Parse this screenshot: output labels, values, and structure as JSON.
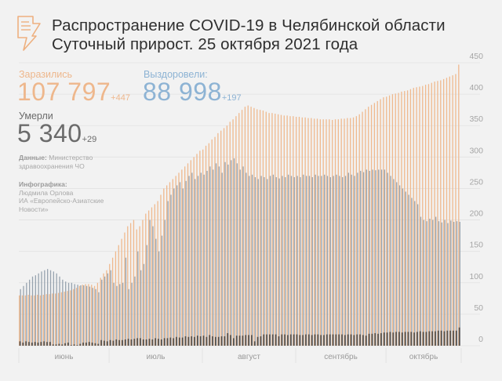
{
  "header": {
    "title_line1": "Распространение COVID-19 в Челябинской области",
    "title_line2": "Суточный прирост. 25 октября 2021 года",
    "icon": "news-lightning-icon"
  },
  "stats": {
    "infected": {
      "label": "Заразились",
      "value": "107 797",
      "increment": "+447"
    },
    "recovered": {
      "label": "Выздоровели:",
      "value": "88 998",
      "increment": "+197"
    },
    "died": {
      "label": "Умерли",
      "value": "5 340",
      "increment": "+29"
    }
  },
  "credits": {
    "data_label": "Данные:",
    "data_text1": "Министерство",
    "data_text2": "здравоохранения ЧО",
    "graphic_label": "Инфографика:",
    "graphic_text1": "Людмила Орлова",
    "graphic_text2": "ИА «Европейско-Азиатские",
    "graphic_text3": "Новости»"
  },
  "colors": {
    "infected": "#efb98e",
    "recovered": "#8d9aa7",
    "died": "#5b5550",
    "grid": "#e2e2e2"
  },
  "chart_data": {
    "type": "bar",
    "title": "Суточный прирост",
    "x_start": "2021-06-01",
    "x_end": "2021-10-25",
    "month_labels": [
      "июнь",
      "июль",
      "август",
      "сентябрь",
      "октябрь"
    ],
    "month_days": [
      30,
      31,
      31,
      30,
      25
    ],
    "ylim": [
      0,
      450
    ],
    "yticks": [
      0,
      50,
      100,
      150,
      200,
      250,
      300,
      350,
      400,
      450
    ],
    "grid": true,
    "series": [
      {
        "name": "Заразились",
        "values": [
          80,
          80,
          80,
          81,
          80,
          80,
          81,
          80,
          81,
          82,
          82,
          83,
          83,
          84,
          85,
          86,
          87,
          88,
          90,
          92,
          95,
          97,
          98,
          98,
          97,
          95,
          100,
          108,
          115,
          120,
          130,
          140,
          150,
          160,
          170,
          180,
          190,
          195,
          200,
          185,
          190,
          200,
          210,
          215,
          220,
          225,
          230,
          240,
          250,
          255,
          260,
          265,
          270,
          275,
          280,
          285,
          290,
          295,
          300,
          305,
          310,
          312,
          318,
          322,
          328,
          332,
          338,
          342,
          346,
          350,
          356,
          360,
          365,
          370,
          375,
          380,
          382,
          380,
          378,
          376,
          375,
          374,
          372,
          370,
          370,
          369,
          368,
          367,
          366,
          366,
          365,
          365,
          364,
          364,
          363,
          363,
          362,
          362,
          361,
          361,
          360,
          360,
          360,
          360,
          359,
          360,
          360,
          361,
          361,
          362,
          362,
          363,
          365,
          368,
          372,
          376,
          380,
          383,
          386,
          389,
          392,
          395,
          396,
          398,
          400,
          401,
          402,
          404,
          405,
          406,
          408,
          410,
          411,
          412,
          413,
          415,
          416,
          418,
          420,
          421,
          422,
          424,
          426,
          428,
          430,
          432,
          447
        ]
      },
      {
        "name": "Выздоровели",
        "values": [
          90,
          95,
          100,
          105,
          110,
          112,
          115,
          118,
          120,
          122,
          120,
          118,
          115,
          110,
          105,
          102,
          100,
          100,
          98,
          97,
          96,
          96,
          95,
          94,
          92,
          90,
          85,
          105,
          110,
          115,
          120,
          100,
          95,
          98,
          100,
          140,
          90,
          100,
          110,
          150,
          120,
          130,
          160,
          200,
          190,
          170,
          150,
          175,
          200,
          230,
          240,
          250,
          255,
          260,
          250,
          262,
          270,
          275,
          265,
          270,
          275,
          272,
          278,
          285,
          280,
          290,
          285,
          275,
          292,
          288,
          295,
          298,
          290,
          280,
          285,
          275,
          270,
          272,
          268,
          265,
          270,
          268,
          265,
          270,
          272,
          268,
          266,
          270,
          268,
          272,
          270,
          268,
          270,
          268,
          272,
          270,
          270,
          268,
          272,
          270,
          270,
          272,
          270,
          268,
          270,
          272,
          270,
          268,
          270,
          275,
          272,
          270,
          275,
          278,
          276,
          280,
          278,
          280,
          279,
          280,
          280,
          280,
          275,
          270,
          265,
          260,
          255,
          250,
          245,
          240,
          235,
          230,
          225,
          205,
          200,
          198,
          202,
          200,
          205,
          198,
          196,
          200,
          195,
          199,
          197,
          198,
          197
        ]
      },
      {
        "name": "Умерли",
        "values": [
          7,
          5,
          7,
          6,
          5,
          6,
          5,
          6,
          7,
          6,
          6,
          2,
          2,
          3,
          2,
          4,
          5,
          1,
          2,
          1,
          3,
          5,
          5,
          6,
          5,
          4,
          3,
          9,
          8,
          7,
          9,
          8,
          10,
          9,
          9,
          10,
          11,
          10,
          11,
          12,
          12,
          10,
          10,
          11,
          10,
          12,
          11,
          10,
          12,
          12,
          13,
          12,
          14,
          13,
          13,
          15,
          14,
          15,
          14,
          16,
          15,
          16,
          14,
          17,
          15,
          14,
          14,
          15,
          15,
          20,
          17,
          12,
          16,
          16,
          16,
          17,
          17,
          17,
          7,
          14,
          15,
          18,
          18,
          18,
          18,
          18,
          15,
          18,
          18,
          17,
          18,
          18,
          18,
          17,
          17,
          18,
          18,
          17,
          18,
          18,
          17,
          17,
          18,
          18,
          18,
          18,
          18,
          18,
          17,
          18,
          18,
          17,
          18,
          18,
          17,
          16,
          19,
          19,
          20,
          19,
          20,
          21,
          21,
          22,
          21,
          22,
          22,
          21,
          22,
          22,
          22,
          21,
          22,
          23,
          22,
          22,
          23,
          23,
          23,
          24,
          24,
          23,
          24,
          24,
          24,
          24,
          29
        ]
      }
    ]
  }
}
